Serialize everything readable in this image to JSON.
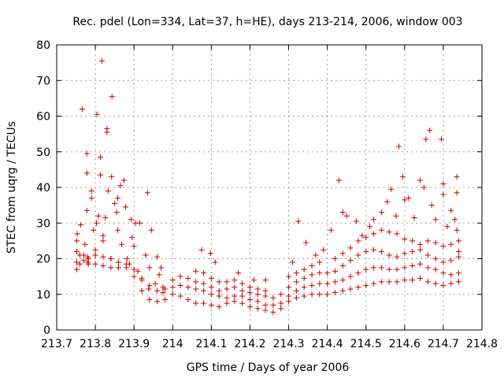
{
  "chart_data": {
    "type": "scatter",
    "title": "Rec. pdel (Lon=334, Lat=37, h=HE), days 213-214, 2006, window 003",
    "xlabel": "GPS time / Days of year 2006",
    "ylabel": "STEC from uqrg / TECUs",
    "xlim": [
      213.7,
      214.8
    ],
    "ylim": [
      0,
      80
    ],
    "xticks": [
      213.7,
      213.8,
      213.9,
      214,
      214.1,
      214.2,
      214.3,
      214.4,
      214.5,
      214.6,
      214.7,
      214.8
    ],
    "xtick_labels": [
      "213.7",
      "213.8",
      "213.9",
      "214",
      "214.1",
      "214.2",
      "214.3",
      "214.4",
      "214.5",
      "214.6",
      "214.7",
      "214.8"
    ],
    "yticks": [
      0,
      10,
      20,
      30,
      40,
      50,
      60,
      70,
      80
    ],
    "ytick_labels": [
      "0",
      "10",
      "20",
      "30",
      "40",
      "50",
      "60",
      "70",
      "80"
    ],
    "grid": true,
    "marker": "+",
    "color": "#cc0000",
    "series": [
      {
        "name": "",
        "points": [
          [
            213.752,
            17
          ],
          [
            213.752,
            19
          ],
          [
            213.752,
            22
          ],
          [
            213.752,
            25
          ],
          [
            213.753,
            27
          ],
          [
            213.762,
            29.5
          ],
          [
            213.766,
            62
          ],
          [
            213.77,
            19.5
          ],
          [
            213.77,
            21
          ],
          [
            213.773,
            24
          ],
          [
            213.778,
            33.5
          ],
          [
            213.778,
            44
          ],
          [
            213.778,
            49.5
          ],
          [
            213.782,
            18.5
          ],
          [
            213.782,
            20
          ],
          [
            213.79,
            37
          ],
          [
            213.79,
            39
          ],
          [
            213.795,
            28
          ],
          [
            213.8,
            21
          ],
          [
            213.8,
            22.5
          ],
          [
            213.803,
            30
          ],
          [
            213.804,
            60.5
          ],
          [
            213.808,
            32
          ],
          [
            213.813,
            48.5
          ],
          [
            213.813,
            43.5
          ],
          [
            213.817,
            75.5
          ],
          [
            213.82,
            25
          ],
          [
            213.82,
            26.5
          ],
          [
            213.826,
            31.5
          ],
          [
            213.83,
            55.5
          ],
          [
            213.83,
            56.5
          ],
          [
            213.833,
            39
          ],
          [
            213.84,
            20
          ],
          [
            213.842,
            43
          ],
          [
            213.843,
            65.5
          ],
          [
            213.85,
            35.5
          ],
          [
            213.855,
            33
          ],
          [
            213.858,
            28
          ],
          [
            213.858,
            37
          ],
          [
            213.865,
            40.5
          ],
          [
            213.868,
            24
          ],
          [
            213.874,
            42
          ],
          [
            213.878,
            34.5
          ],
          [
            213.882,
            20
          ],
          [
            213.888,
            18.5
          ],
          [
            213.893,
            31
          ],
          [
            213.895,
            26
          ],
          [
            213.9,
            23.5
          ],
          [
            213.904,
            30
          ],
          [
            213.91,
            16.5
          ],
          [
            213.915,
            30
          ],
          [
            213.92,
            14
          ],
          [
            213.93,
            21
          ],
          [
            213.935,
            38.5
          ],
          [
            213.938,
            11.5
          ],
          [
            213.94,
            17.5
          ],
          [
            213.945,
            28
          ],
          [
            213.955,
            13
          ],
          [
            213.96,
            20.5
          ],
          [
            213.965,
            15.5
          ],
          [
            213.97,
            17.5
          ],
          [
            213.975,
            10.5
          ],
          [
            213.975,
            12
          ],
          [
            213.76,
            18.5
          ],
          [
            213.78,
            19
          ],
          [
            213.8,
            18.5
          ],
          [
            213.82,
            18
          ],
          [
            213.84,
            17.5
          ],
          [
            213.86,
            17.5
          ],
          [
            213.88,
            17.5
          ],
          [
            213.9,
            15
          ],
          [
            213.92,
            11
          ],
          [
            213.94,
            8.5
          ],
          [
            213.96,
            8
          ],
          [
            213.98,
            8.5
          ],
          [
            214.0,
            10
          ],
          [
            214.02,
            9.5
          ],
          [
            214.04,
            8.5
          ],
          [
            214.06,
            7.5
          ],
          [
            214.08,
            7.5
          ],
          [
            214.1,
            7
          ],
          [
            214.12,
            6.5
          ],
          [
            214.14,
            7.5
          ],
          [
            214.16,
            8
          ],
          [
            214.18,
            7.5
          ],
          [
            214.2,
            6.5
          ],
          [
            214.22,
            6
          ],
          [
            214.24,
            5.5
          ],
          [
            214.26,
            5
          ],
          [
            214.28,
            6
          ],
          [
            214.3,
            8
          ],
          [
            214.32,
            9
          ],
          [
            214.34,
            9.5
          ],
          [
            214.36,
            10
          ],
          [
            214.38,
            10
          ],
          [
            214.4,
            10
          ],
          [
            214.42,
            10.5
          ],
          [
            214.44,
            11
          ],
          [
            214.46,
            11.5
          ],
          [
            214.48,
            12
          ],
          [
            214.5,
            12.5
          ],
          [
            214.52,
            13
          ],
          [
            214.54,
            13.5
          ],
          [
            214.56,
            13.5
          ],
          [
            214.58,
            13.5
          ],
          [
            214.6,
            14
          ],
          [
            214.62,
            14
          ],
          [
            214.64,
            14.5
          ],
          [
            214.66,
            13.5
          ],
          [
            214.68,
            13
          ],
          [
            214.7,
            12.5
          ],
          [
            214.72,
            13
          ],
          [
            214.74,
            13.5
          ],
          [
            213.76,
            21
          ],
          [
            213.78,
            20.5
          ],
          [
            213.8,
            21
          ],
          [
            213.82,
            20.5
          ],
          [
            213.84,
            20
          ],
          [
            213.86,
            19
          ],
          [
            213.88,
            18.5
          ],
          [
            213.9,
            17
          ],
          [
            213.92,
            14.5
          ],
          [
            213.94,
            12.5
          ],
          [
            213.96,
            11
          ],
          [
            213.98,
            11.5
          ],
          [
            214.0,
            12
          ],
          [
            214.02,
            12.5
          ],
          [
            214.04,
            12
          ],
          [
            214.06,
            11.5
          ],
          [
            214.08,
            11
          ],
          [
            214.1,
            10
          ],
          [
            214.12,
            9.5
          ],
          [
            214.14,
            9
          ],
          [
            214.16,
            9.5
          ],
          [
            214.18,
            9.5
          ],
          [
            214.2,
            8.5
          ],
          [
            214.22,
            8
          ],
          [
            214.24,
            7
          ],
          [
            214.26,
            7
          ],
          [
            214.28,
            7.5
          ],
          [
            214.3,
            9.5
          ],
          [
            214.32,
            11
          ],
          [
            214.34,
            12
          ],
          [
            214.36,
            12.5
          ],
          [
            214.38,
            13
          ],
          [
            214.4,
            13
          ],
          [
            214.42,
            13.5
          ],
          [
            214.44,
            14
          ],
          [
            214.46,
            15
          ],
          [
            214.48,
            16
          ],
          [
            214.5,
            17
          ],
          [
            214.52,
            17.5
          ],
          [
            214.54,
            17.5
          ],
          [
            214.56,
            17
          ],
          [
            214.58,
            17
          ],
          [
            214.6,
            17.5
          ],
          [
            214.62,
            18
          ],
          [
            214.64,
            18.5
          ],
          [
            214.66,
            17.5
          ],
          [
            214.68,
            17
          ],
          [
            214.7,
            16
          ],
          [
            214.72,
            15.5
          ],
          [
            214.74,
            16
          ],
          [
            214.0,
            14
          ],
          [
            214.02,
            15
          ],
          [
            214.04,
            14.5
          ],
          [
            214.06,
            13.5
          ],
          [
            214.08,
            13
          ],
          [
            214.1,
            12
          ],
          [
            214.12,
            11
          ],
          [
            214.14,
            11.5
          ],
          [
            214.16,
            12
          ],
          [
            214.18,
            11
          ],
          [
            214.2,
            10.5
          ],
          [
            214.22,
            10
          ],
          [
            214.24,
            9.5
          ],
          [
            214.26,
            9
          ],
          [
            214.28,
            10
          ],
          [
            214.3,
            12
          ],
          [
            214.32,
            13.5
          ],
          [
            214.34,
            14.5
          ],
          [
            214.36,
            15.5
          ],
          [
            214.38,
            16
          ],
          [
            214.4,
            16
          ],
          [
            214.42,
            16.5
          ],
          [
            214.44,
            18
          ],
          [
            214.46,
            19.5
          ],
          [
            214.48,
            21
          ],
          [
            214.5,
            22
          ],
          [
            214.52,
            22.5
          ],
          [
            214.54,
            22
          ],
          [
            214.56,
            21
          ],
          [
            214.58,
            20.5
          ],
          [
            214.6,
            21.5
          ],
          [
            214.62,
            22
          ],
          [
            214.64,
            22.5
          ],
          [
            214.66,
            21
          ],
          [
            214.68,
            20
          ],
          [
            214.7,
            19
          ],
          [
            214.72,
            19.5
          ],
          [
            214.74,
            20.5
          ],
          [
            214.06,
            16.5
          ],
          [
            214.08,
            16
          ],
          [
            214.1,
            14.5
          ],
          [
            214.12,
            13.5
          ],
          [
            214.14,
            13.5
          ],
          [
            214.16,
            14
          ],
          [
            214.18,
            13
          ],
          [
            214.2,
            12
          ],
          [
            214.22,
            11.5
          ],
          [
            214.24,
            11
          ],
          [
            214.3,
            15
          ],
          [
            214.32,
            16
          ],
          [
            214.34,
            17
          ],
          [
            214.36,
            18
          ],
          [
            214.38,
            19
          ],
          [
            214.42,
            20
          ],
          [
            214.44,
            21.5
          ],
          [
            214.46,
            23
          ],
          [
            214.48,
            25
          ],
          [
            214.5,
            26
          ],
          [
            214.52,
            27
          ],
          [
            214.54,
            28
          ],
          [
            214.56,
            27.5
          ],
          [
            214.58,
            27
          ],
          [
            214.6,
            25.5
          ],
          [
            214.62,
            25
          ],
          [
            214.64,
            24
          ],
          [
            214.66,
            25
          ],
          [
            214.68,
            24.5
          ],
          [
            214.7,
            23.5
          ],
          [
            214.72,
            24
          ],
          [
            214.74,
            25
          ],
          [
            214.075,
            22.5
          ],
          [
            214.098,
            21.5
          ],
          [
            214.11,
            19
          ],
          [
            214.17,
            16
          ],
          [
            214.21,
            14
          ],
          [
            214.24,
            14
          ],
          [
            214.31,
            19
          ],
          [
            214.325,
            30.5
          ],
          [
            214.345,
            24.5
          ],
          [
            214.37,
            21
          ],
          [
            214.39,
            22.5
          ],
          [
            214.41,
            28
          ],
          [
            214.43,
            42
          ],
          [
            214.44,
            33
          ],
          [
            214.45,
            32
          ],
          [
            214.475,
            30.5
          ],
          [
            214.49,
            26.5
          ],
          [
            214.51,
            29
          ],
          [
            214.52,
            31
          ],
          [
            214.54,
            33
          ],
          [
            214.555,
            36
          ],
          [
            214.565,
            39.5
          ],
          [
            214.578,
            32
          ],
          [
            214.585,
            51.5
          ],
          [
            214.595,
            43
          ],
          [
            214.6,
            36.5
          ],
          [
            214.61,
            37
          ],
          [
            214.625,
            31.5
          ],
          [
            214.64,
            42
          ],
          [
            214.65,
            40
          ],
          [
            214.655,
            53.5
          ],
          [
            214.665,
            56
          ],
          [
            214.67,
            35
          ],
          [
            214.68,
            31
          ],
          [
            214.695,
            53.5
          ],
          [
            214.7,
            41
          ],
          [
            214.7,
            38
          ],
          [
            214.71,
            29
          ],
          [
            214.72,
            33.5
          ],
          [
            214.73,
            31
          ],
          [
            214.735,
            43
          ],
          [
            214.735,
            38.5
          ],
          [
            214.735,
            28
          ],
          [
            214.74,
            22
          ]
        ]
      }
    ]
  }
}
